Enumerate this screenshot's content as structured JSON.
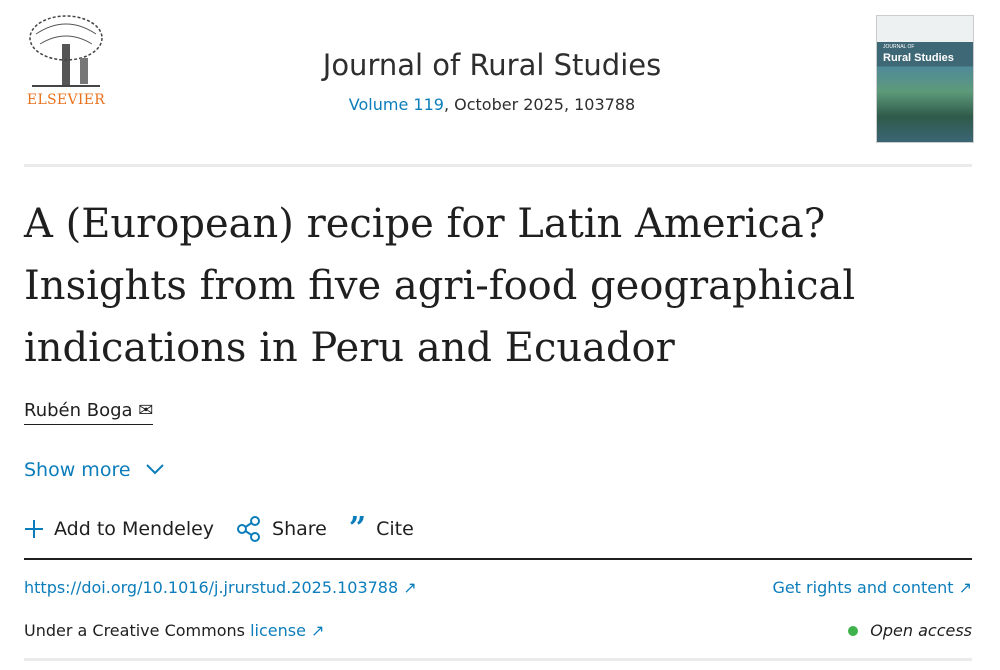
{
  "publisher": {
    "logo_text": "ELSEVIER",
    "logo_color": "#e9711c"
  },
  "journal": {
    "title": "Journal of Rural Studies",
    "volume_link": "Volume 119",
    "issue_info": ", October 2025, 103788",
    "cover_title": "Rural Studies",
    "cover_subtitle": "JOURNAL OF"
  },
  "article": {
    "title": "A (European) recipe for Latin America? Insights from five agri-food geographical indications in Peru and Ecuador",
    "author": "Rubén Boga",
    "show_more": "Show more"
  },
  "actions": {
    "mendeley": "Add to Mendeley",
    "share": "Share",
    "cite": "Cite"
  },
  "links": {
    "doi": "https://doi.org/10.1016/j.jrurstud.2025.103788",
    "rights": "Get rights and content",
    "license_prefix": "Under a Creative Commons ",
    "license_link": "license",
    "open_access": "Open access"
  },
  "colors": {
    "link": "#0c7dbb",
    "open_access_dot": "#3fb24b"
  }
}
